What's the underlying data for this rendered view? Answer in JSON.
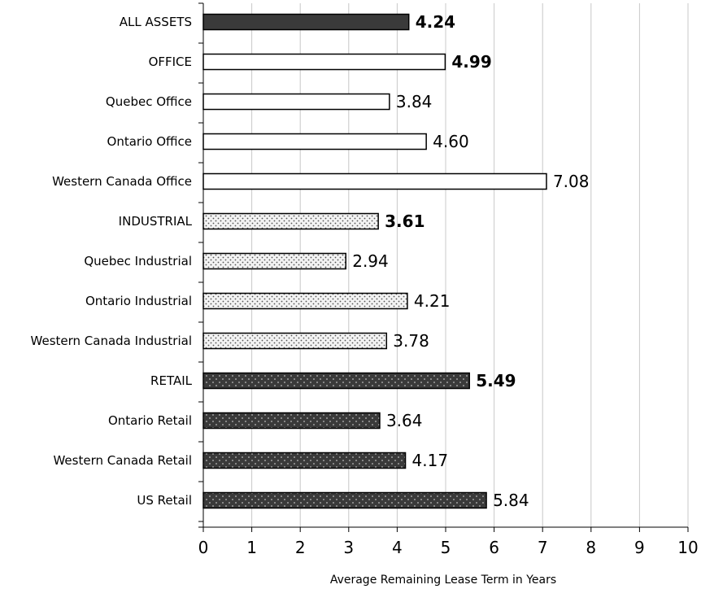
{
  "chart_data": {
    "type": "bar",
    "orientation": "horizontal",
    "title": "",
    "xlabel": "Average Remaining Lease Term in Years",
    "ylabel": "",
    "xlim": [
      0,
      10
    ],
    "x_ticks": [
      "0",
      "1",
      "2",
      "3",
      "4",
      "5",
      "6",
      "7",
      "8",
      "9",
      "10"
    ],
    "grid": "vertical",
    "legend": "none",
    "colors": {
      "dark": "#3a3a3a",
      "white": "#ffffff",
      "light_dots": "#f3f3f3",
      "grid": "#c8c8c8"
    },
    "categories": [
      "ALL ASSETS",
      "OFFICE",
      "Quebec Office",
      "Ontario Office",
      "Western Canada Office",
      "INDUSTRIAL",
      "Quebec Industrial",
      "Ontario Industrial",
      "Western Canada Industrial",
      "RETAIL",
      "Ontario Retail",
      "Western Canada Retail",
      "US Retail"
    ],
    "values": [
      4.24,
      4.99,
      3.84,
      4.6,
      7.08,
      3.61,
      2.94,
      4.21,
      3.78,
      5.49,
      3.64,
      4.17,
      5.84
    ],
    "value_labels": [
      "4.24",
      "4.99",
      "3.84",
      "4.60",
      "7.08",
      "3.61",
      "2.94",
      "4.21",
      "3.78",
      "5.49",
      "3.64",
      "4.17",
      "5.84"
    ],
    "label_bold": [
      true,
      true,
      false,
      false,
      false,
      true,
      false,
      false,
      false,
      true,
      false,
      false,
      false
    ],
    "fills": [
      "solid-dark",
      "white",
      "white",
      "white",
      "white",
      "dots-light",
      "dots-light",
      "dots-light",
      "dots-light",
      "dots-dark",
      "dots-dark",
      "dots-dark",
      "dots-dark"
    ]
  }
}
